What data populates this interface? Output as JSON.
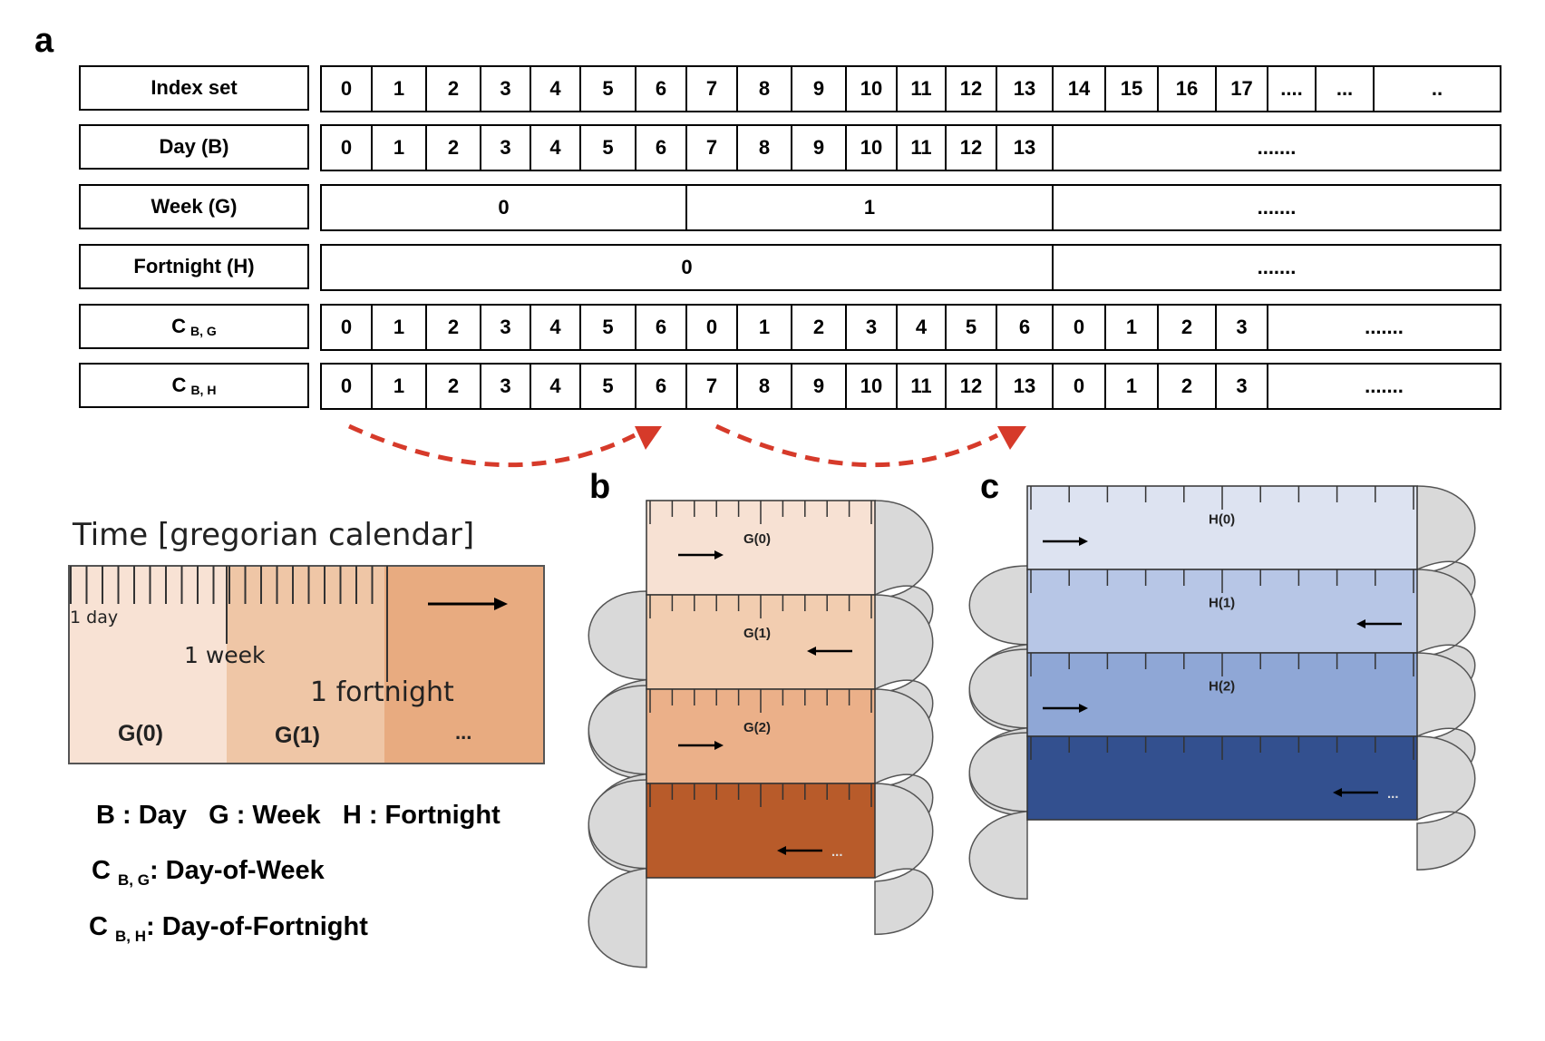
{
  "panels": {
    "a": "a",
    "b": "b",
    "c": "c"
  },
  "table": {
    "rows": [
      {
        "label": "Index set",
        "sub": "",
        "cells": [
          "0",
          "1",
          "2",
          "3",
          "4",
          "5",
          "6",
          "7",
          "8",
          "9",
          "10",
          "11",
          "12",
          "13",
          "14",
          "15",
          "16",
          "17",
          "....",
          "...",
          ".."
        ]
      },
      {
        "label": "Day (B)",
        "sub": "",
        "cells": [
          "0",
          "1",
          "2",
          "3",
          "4",
          "5",
          "6",
          "7",
          "8",
          "9",
          "10",
          "11",
          "12",
          "13",
          "......."
        ]
      },
      {
        "label": "Week (G)",
        "sub": "",
        "cells": [
          "0",
          "1",
          "......."
        ]
      },
      {
        "label": "Fortnight (H)",
        "sub": "",
        "cells": [
          "0",
          "......."
        ]
      },
      {
        "label": "C",
        "sub": "B, G",
        "cells": [
          "0",
          "1",
          "2",
          "3",
          "4",
          "5",
          "6",
          "0",
          "1",
          "2",
          "3",
          "4",
          "5",
          "6",
          "0",
          "1",
          "2",
          "3",
          "......."
        ]
      },
      {
        "label": "C",
        "sub": "B, H",
        "cells": [
          "0",
          "1",
          "2",
          "3",
          "4",
          "5",
          "6",
          "7",
          "8",
          "9",
          "10",
          "11",
          "12",
          "13",
          "0",
          "1",
          "2",
          "3",
          "......."
        ]
      }
    ]
  },
  "timeline": {
    "title": "Time [gregorian calendar]",
    "day_label": "1 day",
    "week_label": "1 week",
    "fortnight_label": "1 fortnight",
    "segments": [
      "G(0)",
      "G(1)",
      "..."
    ]
  },
  "legend": {
    "line1": "B : Day   G : Week   H : Fortnight",
    "line2_prefix": "C",
    "line2_sub": "B, G",
    "line2_text": ": Day-of-Week",
    "line3_prefix": "C",
    "line3_sub": "B, H",
    "line3_text": ": Day-of-Fortnight"
  },
  "scroll_b": {
    "labels": [
      "G(0)",
      "G(1)",
      "G(2)",
      "..."
    ]
  },
  "scroll_c": {
    "labels": [
      "H(0)",
      "H(1)",
      "H(2)",
      "..."
    ]
  },
  "colors": {
    "arrow_dashed": "#d63a2a",
    "week_fills": [
      "#f7e1d3",
      "#f2cdb0",
      "#ebb089",
      "#b85b2a"
    ],
    "fortnight_fills": [
      "#dde3f1",
      "#b7c6e6",
      "#8fa7d6",
      "#33508f"
    ],
    "timeline_fills": [
      "#f8e2d4",
      "#efc6a6",
      "#e8ab80"
    ],
    "cylinder": "#d9d9d9"
  }
}
